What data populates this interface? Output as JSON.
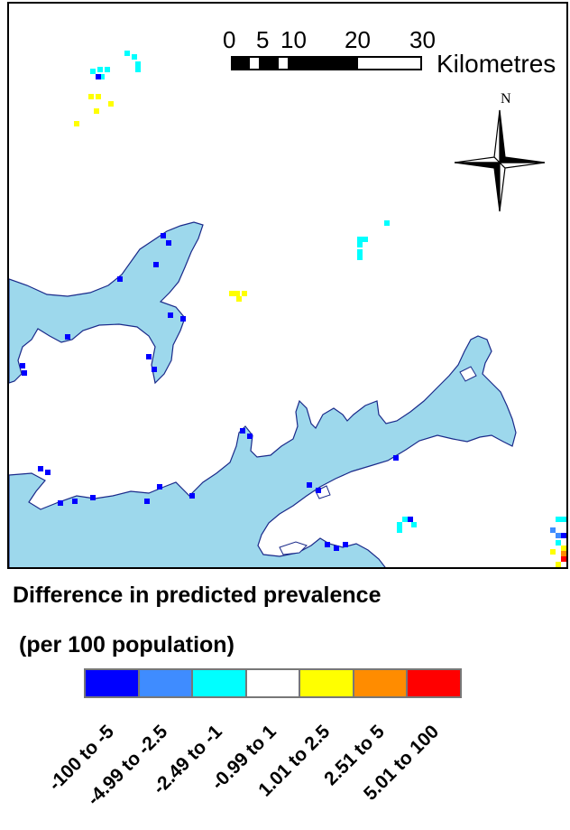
{
  "scale_bar": {
    "ticks": [
      "0",
      "5",
      "10",
      "20",
      "30"
    ],
    "unit": "Kilometres"
  },
  "north_arrow": {
    "label": "N"
  },
  "legend": {
    "title": "Difference in predicted prevalence",
    "subtitle": "(per 100 population)",
    "classes": [
      {
        "label": "-100 to -5",
        "color": "#0000ff"
      },
      {
        "label": "-4.99 to -2.5",
        "color": "#3f8cff"
      },
      {
        "label": "-2.49 to -1",
        "color": "#00ffff"
      },
      {
        "label": "-0.99 to 1",
        "color": "#ffffff"
      },
      {
        "label": "1.01 to 2.5",
        "color": "#ffff00"
      },
      {
        "label": "2.51 to 5",
        "color": "#ff8c00"
      },
      {
        "label": "5.01 to 100",
        "color": "#ff0000"
      }
    ]
  },
  "colors": {
    "water": "#9dd8ec",
    "water_outline": "#1a2a8a"
  }
}
